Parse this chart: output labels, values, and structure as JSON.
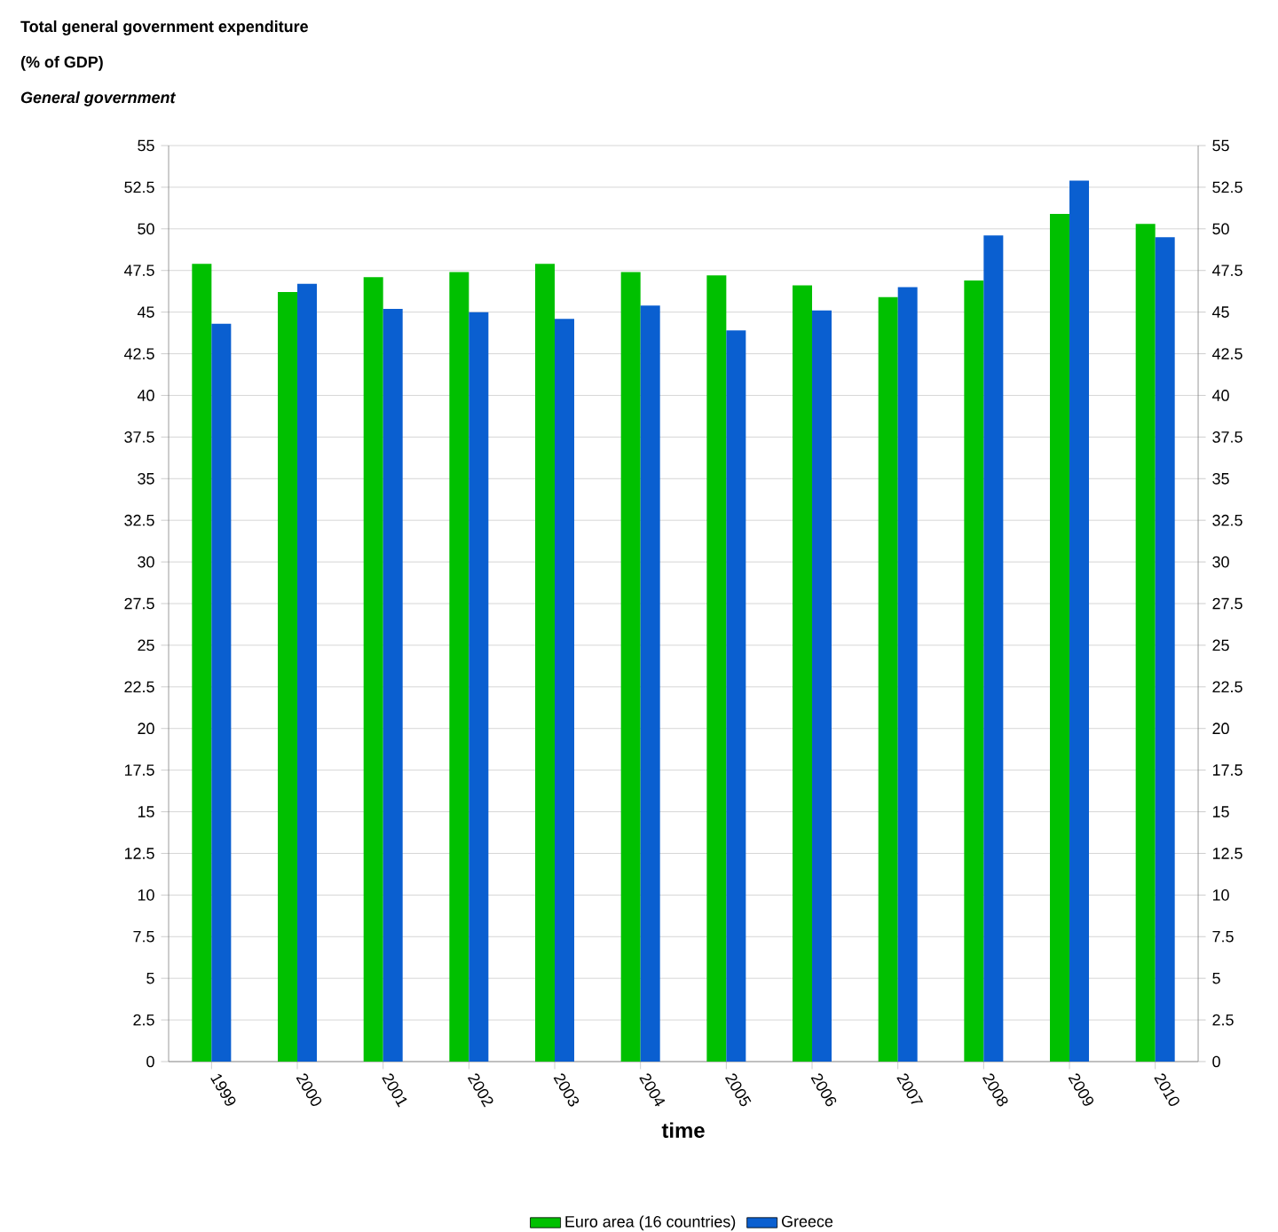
{
  "chart_data": {
    "type": "bar",
    "title": "Total general government expenditure",
    "subtitle": "(% of GDP)",
    "annotations": [
      "General government"
    ],
    "xlabel": "time",
    "categories": [
      "1999",
      "2000",
      "2001",
      "2002",
      "2003",
      "2004",
      "2005",
      "2006",
      "2007",
      "2008",
      "2009",
      "2010"
    ],
    "series": [
      {
        "name": "Euro area (16 countries)",
        "color": "#00c000",
        "values": [
          47.9,
          46.2,
          47.1,
          47.4,
          47.9,
          47.4,
          47.2,
          46.6,
          45.9,
          46.9,
          50.9,
          50.3
        ]
      },
      {
        "name": "Greece",
        "color": "#0a5fd0",
        "values": [
          44.3,
          46.7,
          45.2,
          45.0,
          44.6,
          45.4,
          43.9,
          45.1,
          46.5,
          49.6,
          52.9,
          49.5
        ]
      }
    ],
    "ylim": [
      0,
      55
    ],
    "yticks": [
      0,
      2.5,
      5,
      7.5,
      10,
      12.5,
      15,
      17.5,
      20,
      22.5,
      25,
      27.5,
      30,
      32.5,
      35,
      37.5,
      40,
      42.5,
      45,
      47.5,
      50,
      52.5,
      55
    ],
    "y2lim": [
      0,
      55
    ],
    "y2ticks": [
      0,
      2.5,
      5,
      7.5,
      10,
      12.5,
      15,
      17.5,
      20,
      22.5,
      25,
      27.5,
      30,
      32.5,
      35,
      37.5,
      40,
      42.5,
      45,
      47.5,
      50,
      52.5,
      55
    ],
    "grid": "y",
    "legend": "bottom"
  }
}
